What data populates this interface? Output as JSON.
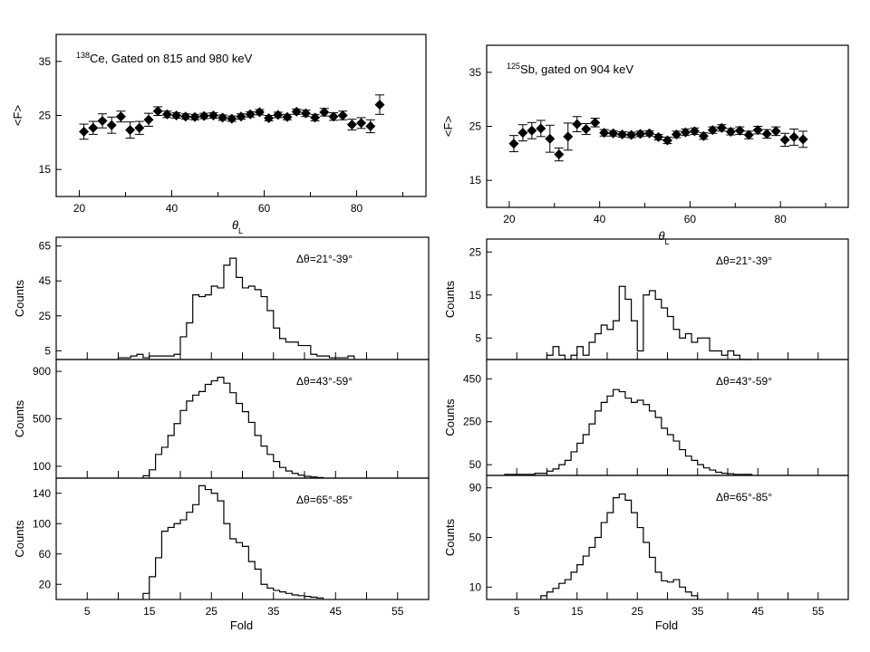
{
  "chart_data": [
    {
      "type": "scatter",
      "title": "138Ce, Gated on 815 and 980 keV",
      "title_sup": "138",
      "title_rest": "Ce, Gated on 815 and 980 keV",
      "xlabel": "θ",
      "xlabel_sub": "L",
      "ylabel": "<F>",
      "xlim": [
        15,
        95
      ],
      "ylim": [
        10,
        40
      ],
      "xticks": [
        20,
        40,
        60,
        80
      ],
      "yticks": [
        15,
        25,
        35
      ],
      "marker": "diamond",
      "points": [
        {
          "x": 21,
          "y": 22.0,
          "err": 1.4
        },
        {
          "x": 23,
          "y": 22.7,
          "err": 1.2
        },
        {
          "x": 25,
          "y": 24.0,
          "err": 1.3
        },
        {
          "x": 27,
          "y": 23.2,
          "err": 1.5
        },
        {
          "x": 29,
          "y": 24.8,
          "err": 1.0
        },
        {
          "x": 31,
          "y": 22.3,
          "err": 1.5
        },
        {
          "x": 33,
          "y": 22.7,
          "err": 1.2
        },
        {
          "x": 35,
          "y": 24.2,
          "err": 1.2
        },
        {
          "x": 37,
          "y": 25.8,
          "err": 0.8
        },
        {
          "x": 39,
          "y": 25.2,
          "err": 0.6
        },
        {
          "x": 41,
          "y": 25.0,
          "err": 0.5
        },
        {
          "x": 43,
          "y": 24.8,
          "err": 0.5
        },
        {
          "x": 45,
          "y": 24.7,
          "err": 0.5
        },
        {
          "x": 47,
          "y": 24.9,
          "err": 0.5
        },
        {
          "x": 49,
          "y": 25.0,
          "err": 0.5
        },
        {
          "x": 51,
          "y": 24.6,
          "err": 0.5
        },
        {
          "x": 53,
          "y": 24.4,
          "err": 0.5
        },
        {
          "x": 55,
          "y": 24.8,
          "err": 0.5
        },
        {
          "x": 57,
          "y": 25.2,
          "err": 0.5
        },
        {
          "x": 59,
          "y": 25.6,
          "err": 0.5
        },
        {
          "x": 61,
          "y": 24.5,
          "err": 0.5
        },
        {
          "x": 63,
          "y": 25.1,
          "err": 0.5
        },
        {
          "x": 65,
          "y": 24.7,
          "err": 0.5
        },
        {
          "x": 67,
          "y": 25.7,
          "err": 0.5
        },
        {
          "x": 69,
          "y": 25.4,
          "err": 0.6
        },
        {
          "x": 71,
          "y": 24.6,
          "err": 0.6
        },
        {
          "x": 73,
          "y": 25.6,
          "err": 0.7
        },
        {
          "x": 75,
          "y": 24.8,
          "err": 0.7
        },
        {
          "x": 77,
          "y": 25.0,
          "err": 0.8
        },
        {
          "x": 79,
          "y": 23.3,
          "err": 1.0
        },
        {
          "x": 81,
          "y": 23.6,
          "err": 1.0
        },
        {
          "x": 83,
          "y": 23.0,
          "err": 1.2
        },
        {
          "x": 85,
          "y": 27.0,
          "err": 1.8
        }
      ]
    },
    {
      "type": "scatter",
      "title": "125Sb, gated on 904 keV",
      "title_sup": "125",
      "title_rest": "Sb, gated on 904 keV",
      "xlabel": "θ",
      "xlabel_sub": "L",
      "ylabel": "<F>",
      "xlim": [
        15,
        95
      ],
      "ylim": [
        10,
        40
      ],
      "xticks": [
        20,
        40,
        60,
        80
      ],
      "yticks": [
        15,
        25,
        35
      ],
      "marker": "diamond",
      "points": [
        {
          "x": 21,
          "y": 21.8,
          "err": 1.5
        },
        {
          "x": 23,
          "y": 23.8,
          "err": 1.5
        },
        {
          "x": 25,
          "y": 24.2,
          "err": 1.5
        },
        {
          "x": 27,
          "y": 24.6,
          "err": 1.5
        },
        {
          "x": 29,
          "y": 22.7,
          "err": 2.5
        },
        {
          "x": 31,
          "y": 19.8,
          "err": 1.2
        },
        {
          "x": 33,
          "y": 23.1,
          "err": 2.5
        },
        {
          "x": 35,
          "y": 25.4,
          "err": 1.4
        },
        {
          "x": 37,
          "y": 24.5,
          "err": 1.0
        },
        {
          "x": 39,
          "y": 25.7,
          "err": 0.8
        },
        {
          "x": 41,
          "y": 23.8,
          "err": 0.6
        },
        {
          "x": 43,
          "y": 23.7,
          "err": 0.5
        },
        {
          "x": 45,
          "y": 23.5,
          "err": 0.5
        },
        {
          "x": 47,
          "y": 23.4,
          "err": 0.5
        },
        {
          "x": 49,
          "y": 23.6,
          "err": 0.5
        },
        {
          "x": 51,
          "y": 23.7,
          "err": 0.5
        },
        {
          "x": 53,
          "y": 23.0,
          "err": 0.5
        },
        {
          "x": 55,
          "y": 22.4,
          "err": 0.6
        },
        {
          "x": 57,
          "y": 23.5,
          "err": 0.6
        },
        {
          "x": 59,
          "y": 23.9,
          "err": 0.6
        },
        {
          "x": 61,
          "y": 24.1,
          "err": 0.6
        },
        {
          "x": 63,
          "y": 23.2,
          "err": 0.6
        },
        {
          "x": 65,
          "y": 24.3,
          "err": 0.6
        },
        {
          "x": 67,
          "y": 24.7,
          "err": 0.6
        },
        {
          "x": 69,
          "y": 24.0,
          "err": 0.6
        },
        {
          "x": 71,
          "y": 24.2,
          "err": 0.7
        },
        {
          "x": 73,
          "y": 23.4,
          "err": 0.7
        },
        {
          "x": 75,
          "y": 24.3,
          "err": 0.7
        },
        {
          "x": 77,
          "y": 23.6,
          "err": 0.8
        },
        {
          "x": 79,
          "y": 24.1,
          "err": 0.8
        },
        {
          "x": 81,
          "y": 22.5,
          "err": 1.2
        },
        {
          "x": 83,
          "y": 23.0,
          "err": 1.5
        },
        {
          "x": 85,
          "y": 22.6,
          "err": 1.5
        }
      ]
    },
    {
      "type": "histogram",
      "annotation": "Δθ=21°-39°",
      "ylabel": "Counts",
      "xlim": [
        0,
        60
      ],
      "ylim": [
        0,
        70
      ],
      "yticks": [
        5,
        25,
        45,
        65
      ],
      "xtick_positions": [
        5,
        15,
        25,
        35,
        45,
        55
      ],
      "bin_start": 10,
      "bin_width": 1,
      "values": [
        1,
        1,
        2,
        3,
        1,
        2,
        2,
        2,
        2,
        3,
        13,
        21,
        37,
        36,
        37,
        42,
        41,
        54,
        58,
        47,
        41,
        42,
        40,
        36,
        28,
        18,
        12,
        10,
        10,
        8,
        8,
        3,
        2,
        2,
        1,
        1,
        1,
        2
      ]
    },
    {
      "type": "histogram",
      "annotation": "Δθ=21°-39°",
      "ylabel": "Counts",
      "xlim": [
        0,
        60
      ],
      "ylim": [
        0,
        28
      ],
      "yticks": [
        5,
        15,
        25
      ],
      "xtick_positions": [
        5,
        15,
        25,
        35,
        45,
        55
      ],
      "bin_start": 10,
      "bin_width": 1,
      "values": [
        1,
        3,
        1,
        0,
        1,
        3,
        1,
        4,
        6,
        8,
        7,
        9,
        17,
        14,
        9,
        2,
        15,
        16,
        14,
        12,
        10,
        7,
        5,
        6,
        4,
        5,
        5,
        2,
        2,
        1,
        2,
        1,
        0,
        0
      ]
    },
    {
      "type": "histogram",
      "annotation": "Δθ=43°-59°",
      "ylabel": "Counts",
      "xlim": [
        0,
        60
      ],
      "ylim": [
        0,
        1000
      ],
      "yticks": [
        100,
        500,
        900
      ],
      "xtick_positions": [
        5,
        15,
        25,
        35,
        45,
        55
      ],
      "bin_start": 14,
      "bin_width": 1,
      "values": [
        20,
        70,
        200,
        260,
        360,
        460,
        570,
        650,
        700,
        730,
        790,
        820,
        850,
        800,
        720,
        630,
        560,
        470,
        360,
        270,
        200,
        140,
        90,
        60,
        40,
        25,
        15,
        10,
        5
      ]
    },
    {
      "type": "histogram",
      "annotation": "Δθ=43°-59°",
      "ylabel": "Counts",
      "xlim": [
        0,
        60
      ],
      "ylim": [
        0,
        540
      ],
      "yticks": [
        50,
        250,
        450
      ],
      "xtick_positions": [
        5,
        15,
        25,
        35,
        45,
        55
      ],
      "bin_start": 3,
      "bin_width": 1,
      "values": [
        5,
        5,
        5,
        5,
        5,
        10,
        10,
        20,
        30,
        50,
        70,
        110,
        150,
        190,
        240,
        300,
        340,
        370,
        400,
        390,
        360,
        340,
        350,
        330,
        300,
        270,
        220,
        190,
        160,
        120,
        90,
        70,
        50,
        35,
        25,
        15,
        10,
        8,
        5,
        5,
        5
      ]
    },
    {
      "type": "histogram",
      "annotation": "Δθ=65°-85°",
      "ylabel": "Counts",
      "xlim": [
        0,
        60
      ],
      "ylim": [
        0,
        160
      ],
      "yticks": [
        20,
        60,
        100,
        140
      ],
      "xtick_positions": [
        5,
        15,
        25,
        35,
        45,
        55
      ],
      "bin_start": 14,
      "bin_width": 1,
      "values": [
        8,
        30,
        55,
        90,
        95,
        100,
        105,
        115,
        125,
        150,
        145,
        140,
        130,
        100,
        80,
        75,
        70,
        50,
        40,
        20,
        15,
        12,
        10,
        8,
        6,
        5,
        4,
        3,
        2
      ]
    },
    {
      "type": "histogram",
      "annotation": "Δθ=65°-85°",
      "ylabel": "Counts",
      "xlim": [
        0,
        60
      ],
      "ylim": [
        0,
        100
      ],
      "yticks": [
        10,
        50,
        90
      ],
      "xtick_positions": [
        5,
        15,
        25,
        35,
        45,
        55
      ],
      "bin_start": 9,
      "bin_width": 1,
      "values": [
        3,
        6,
        9,
        13,
        16,
        22,
        28,
        35,
        42,
        50,
        62,
        70,
        82,
        85,
        80,
        70,
        58,
        46,
        34,
        22,
        15,
        14,
        16,
        10,
        6,
        3
      ]
    }
  ],
  "shared_xlabel": "Fold"
}
